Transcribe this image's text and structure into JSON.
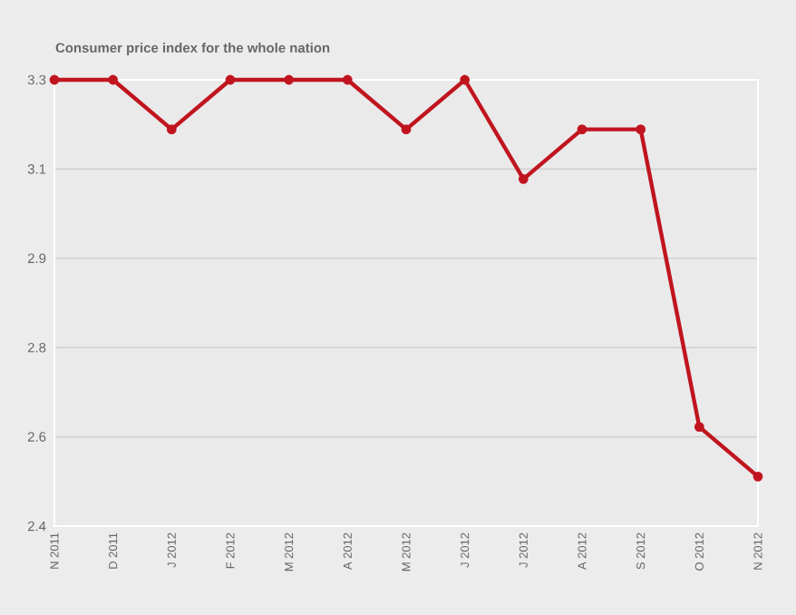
{
  "chart_data": {
    "type": "line",
    "title": "Consumer price index for the whole nation",
    "categories": [
      "N 2011",
      "D 2011",
      "J 2012",
      "F 2012",
      "M 2012",
      "A 2012",
      "M 2012",
      "J 2012",
      "J 2012",
      "A 2012",
      "S 2012",
      "O 2012",
      "N 2012"
    ],
    "series": [
      {
        "color": "#c0151f",
        "values": [
          3.3,
          3.3,
          3.2,
          3.3,
          3.3,
          3.3,
          3.2,
          3.3,
          3.1,
          3.2,
          3.2,
          2.6,
          2.5
        ]
      }
    ],
    "ylim": [
      2.4,
      3.3
    ],
    "yticks": [
      2.4,
      {
        "value": 2.58,
        "label": "2.6"
      },
      {
        "value": 2.76,
        "label": "2.8"
      },
      {
        "value": 2.94,
        "label": "2.9"
      },
      {
        "value": 3.12,
        "label": "3.1"
      },
      3.3
    ],
    "grid": "y",
    "marker": "circle",
    "line_style": "solid"
  }
}
